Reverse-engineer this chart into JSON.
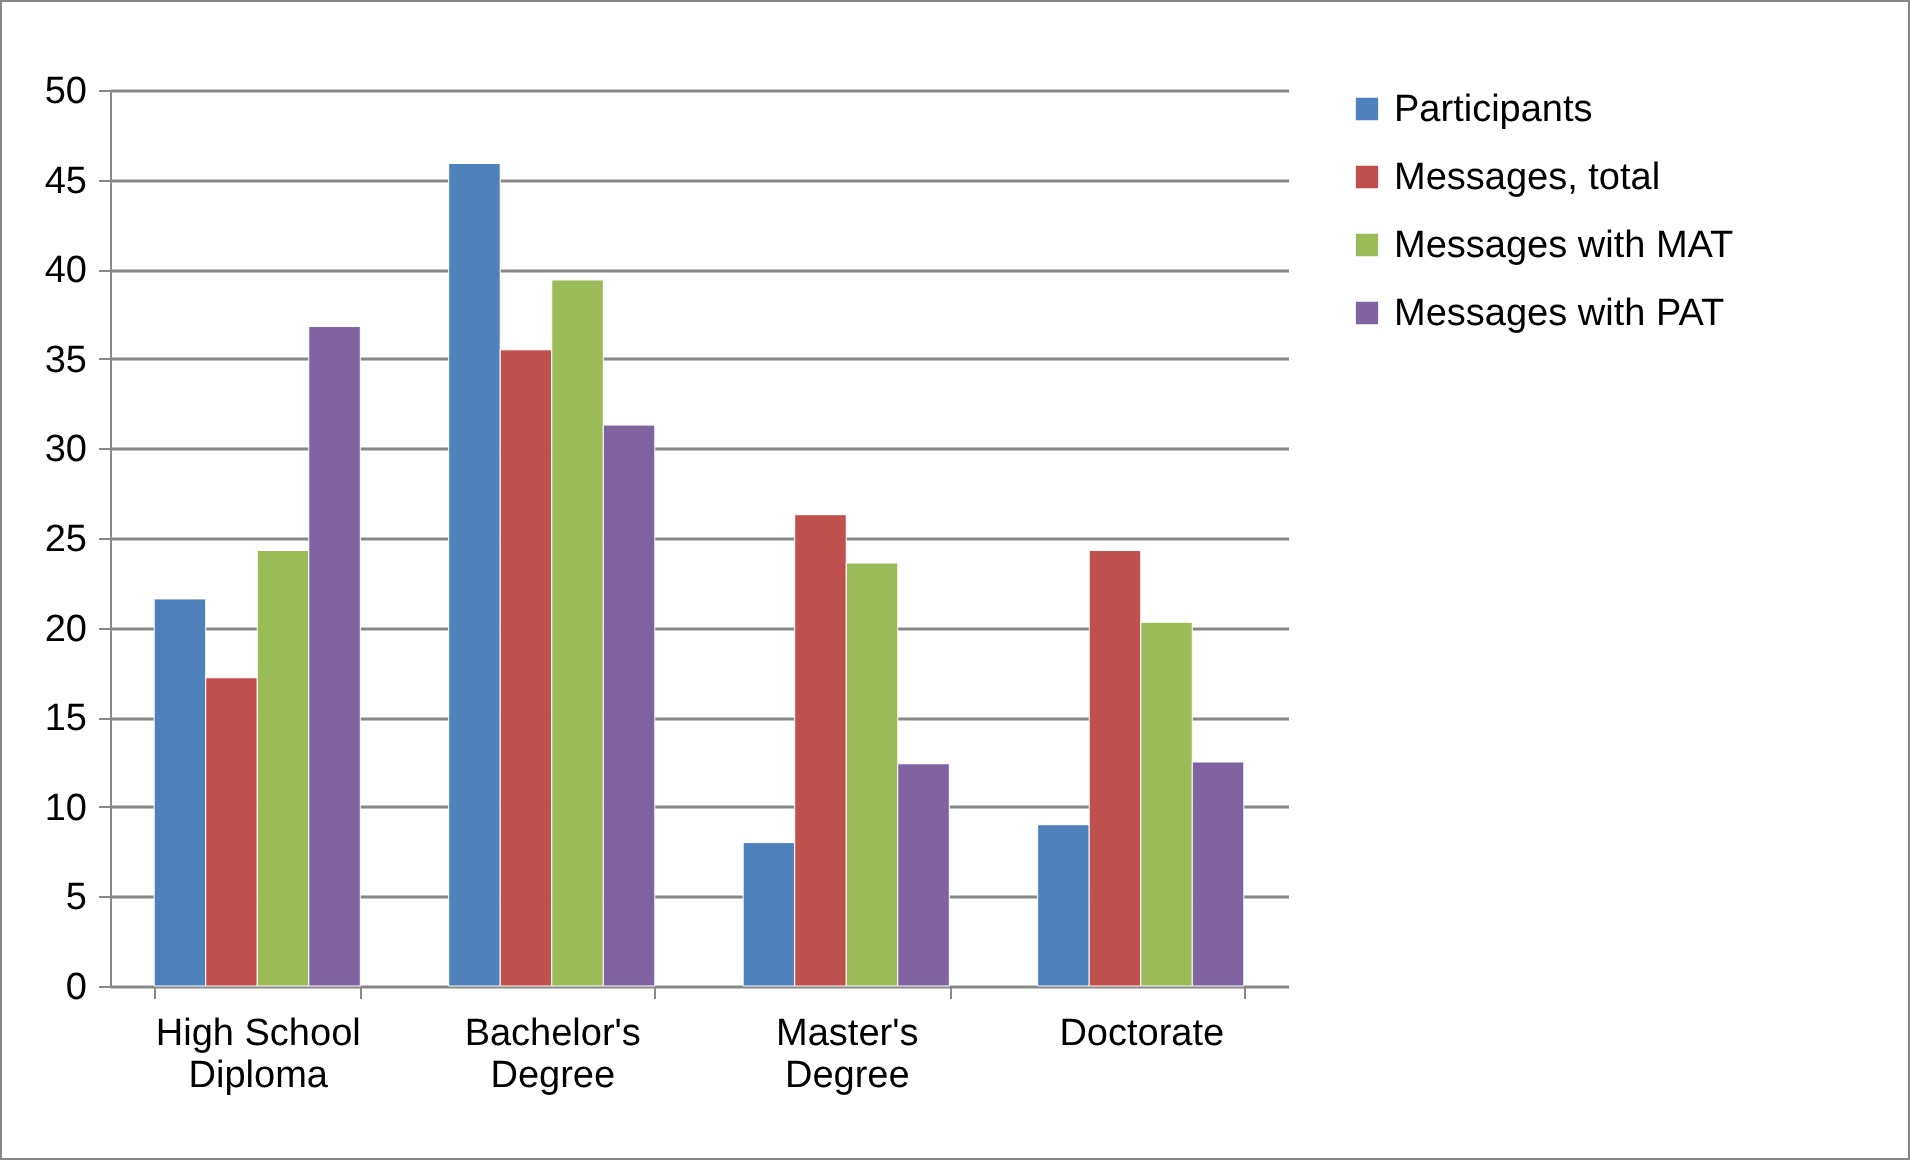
{
  "chart_data": {
    "type": "bar",
    "categories": [
      "High School Diploma",
      "Bachelor's Degree",
      "Master's Degree",
      "Doctorate"
    ],
    "series": [
      {
        "name": "Participants",
        "color": "#4f81bd",
        "values": [
          21.6,
          45.9,
          8.0,
          9.0
        ]
      },
      {
        "name": "Messages, total",
        "color": "#c0504d",
        "values": [
          17.2,
          35.5,
          26.3,
          24.3
        ]
      },
      {
        "name": "Messages with MAT",
        "color": "#9bbb59",
        "values": [
          24.3,
          39.4,
          23.6,
          20.3
        ]
      },
      {
        "name": "Messages with PAT",
        "color": "#8064a2",
        "values": [
          36.8,
          31.3,
          12.4,
          12.5
        ]
      }
    ],
    "ylim": [
      0,
      50
    ],
    "yticks": [
      0,
      5,
      10,
      15,
      20,
      25,
      30,
      35,
      40,
      45,
      50
    ],
    "grid": "y",
    "legend": "right"
  }
}
